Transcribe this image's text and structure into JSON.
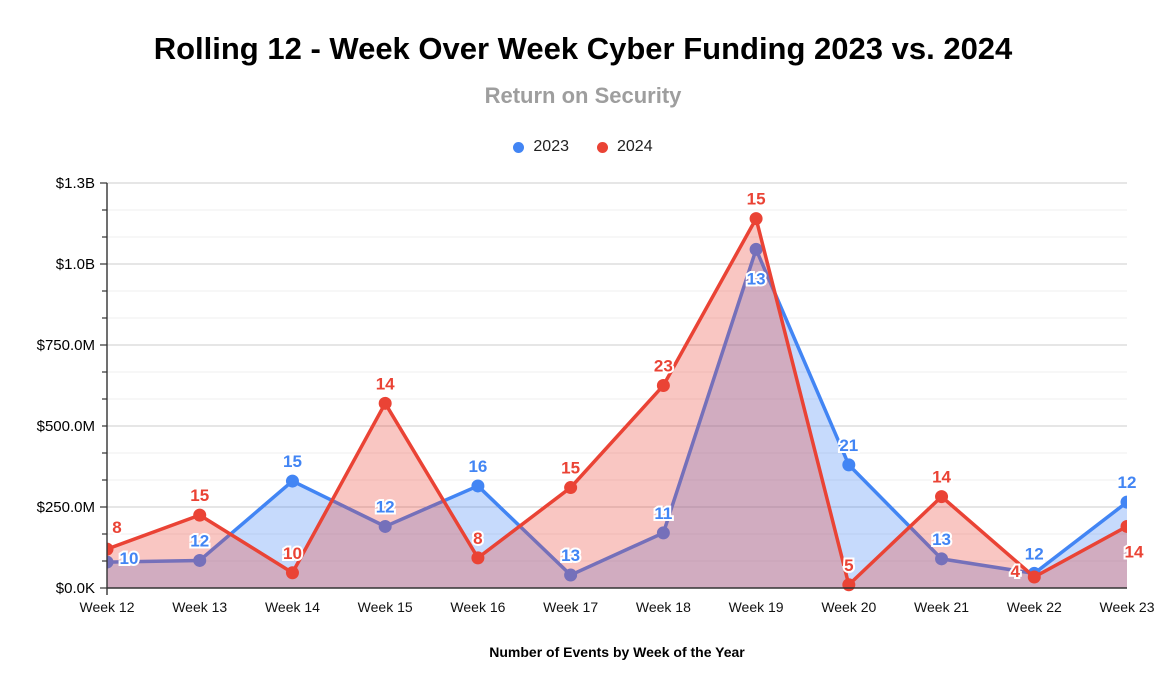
{
  "header": {
    "title": "Rolling 12 - Week Over Week Cyber Funding 2023 vs. 2024",
    "subtitle": "Return on Security"
  },
  "legend": {
    "items": [
      {
        "label": "2023",
        "color": "#4285F4"
      },
      {
        "label": "2024",
        "color": "#EA4335"
      }
    ]
  },
  "chart_data": {
    "type": "area",
    "title": "Rolling 12 - Week Over Week Cyber Funding 2023 vs. 2024",
    "subtitle": "Return on Security",
    "xlabel": "Number of Events by Week of the Year",
    "ylabel": "",
    "legend_position": "top",
    "grid": {
      "major_interval_musd": 250,
      "minor_gridlines_per_major": 2,
      "grid_on": true
    },
    "ylim_musd": [
      0,
      1250
    ],
    "y_ticks": [
      {
        "label": "$1.3B",
        "value_musd": 1250
      },
      {
        "label": "$1.0B",
        "value_musd": 1000
      },
      {
        "label": "$750.0M",
        "value_musd": 750
      },
      {
        "label": "$500.0M",
        "value_musd": 500
      },
      {
        "label": "$250.0M",
        "value_musd": 250
      },
      {
        "label": "$0.0K",
        "value_musd": 0
      }
    ],
    "categories": [
      "Week 12",
      "Week 13",
      "Week 14",
      "Week 15",
      "Week 16",
      "Week 17",
      "Week 18",
      "Week 19",
      "Week 20",
      "Week 21",
      "Week 22",
      "Week 23"
    ],
    "series": [
      {
        "name": "2023",
        "color": "#4285F4",
        "fill": "rgba(66,133,244,0.30)",
        "funding_musd": [
          80,
          85,
          330,
          190,
          315,
          40,
          170,
          1045,
          380,
          90,
          45,
          265
        ],
        "event_counts": [
          10,
          12,
          15,
          12,
          16,
          13,
          11,
          13,
          21,
          13,
          12,
          12
        ],
        "label_offsets": [
          [
            22,
            2
          ],
          [
            0,
            -14
          ],
          [
            0,
            -14
          ],
          [
            0,
            -14
          ],
          [
            0,
            -14
          ],
          [
            0,
            -14
          ],
          [
            0,
            -14
          ],
          [
            0,
            35
          ],
          [
            0,
            -14
          ],
          [
            0,
            -14
          ],
          [
            0,
            -14
          ],
          [
            0,
            -14
          ]
        ]
      },
      {
        "name": "2024",
        "color": "#EA4335",
        "fill": "rgba(234,67,53,0.30)",
        "funding_musd": [
          120,
          225,
          47,
          570,
          93,
          310,
          625,
          1140,
          10,
          282,
          34,
          190
        ],
        "event_counts": [
          8,
          15,
          10,
          14,
          8,
          15,
          23,
          15,
          5,
          14,
          4,
          14
        ],
        "label_offsets": [
          [
            10,
            -16
          ],
          [
            0,
            -14
          ],
          [
            0,
            -14
          ],
          [
            0,
            -14
          ],
          [
            0,
            -14
          ],
          [
            0,
            -14
          ],
          [
            0,
            -14
          ],
          [
            0,
            -14
          ],
          [
            0,
            -14
          ],
          [
            0,
            -14
          ],
          [
            -19,
            0
          ],
          [
            7,
            31
          ]
        ]
      }
    ]
  }
}
